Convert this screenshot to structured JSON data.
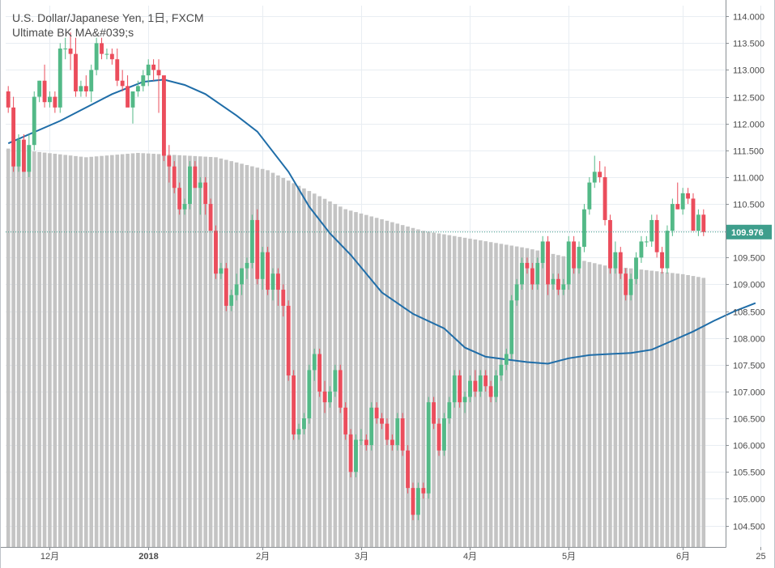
{
  "legend": {
    "title": "U.S. Dollar/Japanese Yen, 1日, FXCM",
    "indicator": "Ultimate BK MA&#039;s"
  },
  "colors": {
    "up": "#53b987",
    "down": "#eb4d5c",
    "ma_line": "#1f6da8",
    "volume": "#c4c4c4",
    "grid": "#e8edf2",
    "axis": "#8a8f94",
    "last_price_bg": "#3e9e8c"
  },
  "chart_data": {
    "type": "candlestick",
    "symbol": "U.S. Dollar/Japanese Yen",
    "interval": "1日",
    "source": "FXCM",
    "last_price_label": "109.976",
    "last_price": 109.976,
    "ylim": [
      104.1,
      114.2
    ],
    "y_ticks": [
      "114.000",
      "113.500",
      "113.000",
      "112.500",
      "112.000",
      "111.500",
      "111.000",
      "110.500",
      "110.000",
      "109.500",
      "109.000",
      "108.500",
      "108.000",
      "107.500",
      "107.000",
      "106.500",
      "106.000",
      "105.500",
      "105.000",
      "104.500"
    ],
    "x_ticks": [
      {
        "label": "12月",
        "bar": 8,
        "bold": false
      },
      {
        "label": "2018",
        "bar": 27,
        "bold": true
      },
      {
        "label": "2月",
        "bar": 49,
        "bold": false
      },
      {
        "label": "3月",
        "bar": 68,
        "bold": false
      },
      {
        "label": "4月",
        "bar": 89,
        "bold": false
      },
      {
        "label": "5月",
        "bar": 108,
        "bold": false
      },
      {
        "label": "6月",
        "bar": 130,
        "bold": false
      },
      {
        "label": "25",
        "bar": 145,
        "bold": false
      }
    ],
    "candles": [
      [
        112.6,
        112.7,
        112.2,
        112.3
      ],
      [
        112.3,
        112.5,
        111.1,
        111.2
      ],
      [
        111.2,
        111.8,
        111.1,
        111.7
      ],
      [
        111.7,
        111.8,
        111.1,
        111.1
      ],
      [
        111.1,
        111.8,
        111.0,
        111.6
      ],
      [
        111.6,
        112.6,
        111.5,
        112.5
      ],
      [
        112.5,
        112.8,
        112.4,
        112.8
      ],
      [
        112.8,
        113.1,
        112.3,
        112.4
      ],
      [
        112.4,
        112.6,
        112.3,
        112.5
      ],
      [
        112.5,
        112.6,
        112.2,
        112.3
      ],
      [
        112.3,
        113.5,
        112.2,
        113.4
      ],
      [
        113.4,
        113.6,
        113.2,
        113.4
      ],
      [
        113.4,
        113.7,
        113.0,
        113.3
      ],
      [
        113.3,
        113.6,
        112.5,
        112.6
      ],
      [
        112.6,
        112.8,
        112.5,
        112.7
      ],
      [
        112.7,
        112.9,
        112.5,
        112.6
      ],
      [
        112.6,
        113.1,
        112.4,
        113.0
      ],
      [
        113.0,
        113.6,
        112.9,
        113.5
      ],
      [
        113.5,
        113.6,
        113.2,
        113.3
      ],
      [
        113.3,
        113.4,
        113.2,
        113.3
      ],
      [
        113.3,
        113.4,
        113.1,
        113.2
      ],
      [
        113.2,
        113.4,
        112.7,
        112.8
      ],
      [
        112.8,
        113.0,
        112.6,
        112.7
      ],
      [
        112.7,
        112.9,
        112.4,
        112.3
      ],
      [
        112.3,
        112.5,
        112.0,
        112.6
      ],
      [
        112.6,
        112.8,
        112.5,
        112.7
      ],
      [
        112.7,
        113.0,
        112.6,
        112.9
      ],
      [
        112.9,
        113.2,
        112.7,
        113.1
      ],
      [
        113.1,
        113.2,
        112.8,
        113.0
      ],
      [
        113.0,
        113.2,
        112.2,
        112.9
      ],
      [
        112.9,
        112.8,
        111.3,
        111.4
      ],
      [
        111.4,
        111.6,
        110.9,
        111.2
      ],
      [
        111.2,
        111.3,
        110.7,
        110.8
      ],
      [
        110.8,
        110.9,
        110.3,
        110.4
      ],
      [
        110.4,
        110.6,
        110.3,
        110.5
      ],
      [
        110.5,
        111.3,
        110.4,
        111.2
      ],
      [
        111.2,
        111.3,
        110.8,
        110.8
      ],
      [
        110.8,
        111.0,
        110.3,
        110.9
      ],
      [
        110.9,
        111.0,
        110.3,
        110.5
      ],
      [
        110.5,
        110.6,
        110.0,
        110.0
      ],
      [
        110.0,
        110.1,
        109.1,
        109.2
      ],
      [
        109.2,
        109.4,
        109.1,
        109.3
      ],
      [
        109.3,
        109.4,
        108.5,
        108.6
      ],
      [
        108.6,
        108.9,
        108.5,
        108.8
      ],
      [
        108.8,
        109.2,
        108.7,
        109.0
      ],
      [
        109.0,
        109.3,
        108.8,
        109.3
      ],
      [
        109.3,
        109.5,
        109.1,
        109.4
      ],
      [
        109.4,
        110.3,
        109.3,
        110.2
      ],
      [
        110.2,
        110.4,
        109.0,
        109.1
      ],
      [
        109.1,
        109.7,
        108.9,
        109.6
      ],
      [
        109.6,
        109.7,
        108.8,
        108.9
      ],
      [
        108.9,
        109.3,
        108.7,
        109.2
      ],
      [
        109.2,
        109.3,
        108.6,
        108.9
      ],
      [
        108.9,
        109.0,
        108.4,
        108.6
      ],
      [
        108.6,
        108.7,
        107.2,
        107.3
      ],
      [
        107.3,
        107.4,
        106.1,
        106.2
      ],
      [
        106.2,
        106.4,
        106.1,
        106.3
      ],
      [
        106.3,
        106.6,
        106.2,
        106.5
      ],
      [
        106.5,
        107.5,
        106.4,
        107.4
      ],
      [
        107.4,
        107.8,
        107.2,
        107.7
      ],
      [
        107.7,
        107.8,
        106.9,
        107.0
      ],
      [
        107.0,
        107.2,
        106.6,
        106.8
      ],
      [
        106.8,
        107.1,
        106.7,
        107.0
      ],
      [
        107.0,
        107.5,
        106.9,
        107.4
      ],
      [
        107.4,
        107.5,
        106.6,
        106.7
      ],
      [
        106.7,
        106.8,
        106.1,
        106.2
      ],
      [
        106.2,
        106.3,
        105.4,
        105.5
      ],
      [
        105.5,
        106.2,
        105.4,
        106.1
      ],
      [
        106.1,
        106.3,
        106.0,
        106.1
      ],
      [
        106.1,
        106.2,
        105.9,
        106.0
      ],
      [
        106.0,
        106.8,
        105.9,
        106.7
      ],
      [
        106.7,
        106.8,
        106.4,
        106.5
      ],
      [
        106.5,
        106.6,
        106.3,
        106.4
      ],
      [
        106.4,
        106.5,
        106.0,
        106.1
      ],
      [
        106.1,
        106.2,
        105.9,
        106.0
      ],
      [
        106.0,
        106.6,
        105.9,
        106.5
      ],
      [
        106.5,
        106.6,
        105.8,
        105.9
      ],
      [
        105.9,
        106.0,
        105.1,
        105.2
      ],
      [
        105.2,
        105.3,
        104.6,
        104.7
      ],
      [
        104.7,
        105.3,
        104.6,
        105.2
      ],
      [
        105.2,
        105.3,
        105.0,
        105.1
      ],
      [
        105.1,
        106.9,
        105.0,
        106.8
      ],
      [
        106.8,
        106.9,
        106.3,
        106.4
      ],
      [
        106.4,
        106.5,
        105.8,
        105.9
      ],
      [
        105.9,
        106.6,
        105.8,
        106.5
      ],
      [
        106.5,
        106.9,
        106.4,
        106.8
      ],
      [
        106.8,
        107.4,
        106.7,
        107.3
      ],
      [
        107.3,
        107.4,
        106.7,
        106.8
      ],
      [
        106.8,
        107.0,
        106.6,
        106.9
      ],
      [
        106.9,
        107.3,
        106.8,
        107.2
      ],
      [
        107.2,
        107.4,
        106.9,
        107.0
      ],
      [
        107.0,
        107.4,
        106.9,
        107.3
      ],
      [
        107.3,
        107.4,
        107.0,
        107.1
      ],
      [
        107.1,
        107.2,
        106.8,
        106.9
      ],
      [
        106.9,
        107.4,
        106.8,
        107.3
      ],
      [
        107.3,
        107.6,
        107.2,
        107.5
      ],
      [
        107.5,
        107.8,
        107.4,
        107.7
      ],
      [
        107.7,
        108.8,
        107.6,
        108.7
      ],
      [
        108.7,
        109.1,
        108.6,
        109.0
      ],
      [
        109.0,
        109.5,
        108.9,
        109.4
      ],
      [
        109.4,
        109.5,
        109.2,
        109.3
      ],
      [
        109.3,
        109.4,
        108.9,
        109.0
      ],
      [
        109.0,
        109.5,
        108.9,
        109.4
      ],
      [
        109.4,
        109.9,
        109.3,
        109.8
      ],
      [
        109.8,
        109.9,
        108.8,
        109.0
      ],
      [
        109.0,
        109.2,
        108.9,
        109.1
      ],
      [
        109.1,
        109.2,
        108.8,
        108.9
      ],
      [
        108.9,
        109.1,
        108.8,
        109.0
      ],
      [
        109.0,
        109.9,
        108.9,
        109.8
      ],
      [
        109.8,
        109.9,
        109.2,
        109.3
      ],
      [
        109.3,
        109.8,
        109.2,
        109.7
      ],
      [
        109.7,
        110.5,
        109.6,
        110.4
      ],
      [
        110.4,
        111.0,
        110.3,
        110.9
      ],
      [
        110.9,
        111.4,
        110.8,
        111.1
      ],
      [
        111.1,
        111.3,
        110.9,
        111.0
      ],
      [
        111.0,
        111.2,
        110.1,
        110.2
      ],
      [
        110.2,
        110.3,
        109.2,
        109.3
      ],
      [
        109.3,
        109.8,
        109.2,
        109.6
      ],
      [
        109.6,
        109.7,
        109.1,
        109.2
      ],
      [
        109.2,
        109.3,
        108.7,
        108.8
      ],
      [
        108.8,
        109.2,
        108.7,
        109.1
      ],
      [
        109.1,
        109.6,
        109.0,
        109.5
      ],
      [
        109.5,
        109.9,
        109.4,
        109.8
      ],
      [
        109.8,
        109.9,
        109.7,
        109.8
      ],
      [
        109.8,
        110.3,
        109.7,
        110.2
      ],
      [
        110.2,
        110.3,
        109.5,
        109.6
      ],
      [
        109.6,
        109.7,
        109.2,
        109.3
      ],
      [
        109.3,
        110.1,
        109.2,
        110.0
      ],
      [
        110.0,
        110.6,
        109.9,
        110.5
      ],
      [
        110.5,
        110.9,
        110.4,
        110.4
      ],
      [
        110.4,
        110.8,
        110.3,
        110.7
      ],
      [
        110.7,
        110.8,
        110.5,
        110.6
      ],
      [
        110.6,
        110.7,
        110.1,
        110.0
      ],
      [
        110.0,
        110.4,
        109.9,
        110.3
      ],
      [
        110.3,
        110.4,
        109.9,
        109.976
      ]
    ],
    "ma": [
      [
        0,
        111.63
      ],
      [
        10,
        112.05
      ],
      [
        20,
        112.55
      ],
      [
        26,
        112.78
      ],
      [
        30,
        112.82
      ],
      [
        34,
        112.72
      ],
      [
        38,
        112.55
      ],
      [
        44,
        112.15
      ],
      [
        48,
        111.85
      ],
      [
        54,
        111.1
      ],
      [
        58,
        110.45
      ],
      [
        62,
        109.95
      ],
      [
        66,
        109.55
      ],
      [
        72,
        108.85
      ],
      [
        78,
        108.45
      ],
      [
        84,
        108.18
      ],
      [
        88,
        107.82
      ],
      [
        92,
        107.65
      ],
      [
        96,
        107.6
      ],
      [
        100,
        107.55
      ],
      [
        104,
        107.52
      ],
      [
        108,
        107.62
      ],
      [
        112,
        107.68
      ],
      [
        116,
        107.7
      ],
      [
        120,
        107.72
      ],
      [
        124,
        107.78
      ],
      [
        128,
        107.95
      ],
      [
        132,
        108.12
      ],
      [
        136,
        108.32
      ],
      [
        140,
        108.5
      ],
      [
        144,
        108.65
      ]
    ],
    "volume": [
      [
        0,
        0.92
      ],
      [
        15,
        0.9
      ],
      [
        25,
        0.91
      ],
      [
        40,
        0.9
      ],
      [
        50,
        0.87
      ],
      [
        65,
        0.78
      ],
      [
        80,
        0.73
      ],
      [
        100,
        0.69
      ],
      [
        115,
        0.65
      ],
      [
        130,
        0.63
      ],
      [
        144,
        0.6
      ]
    ]
  }
}
